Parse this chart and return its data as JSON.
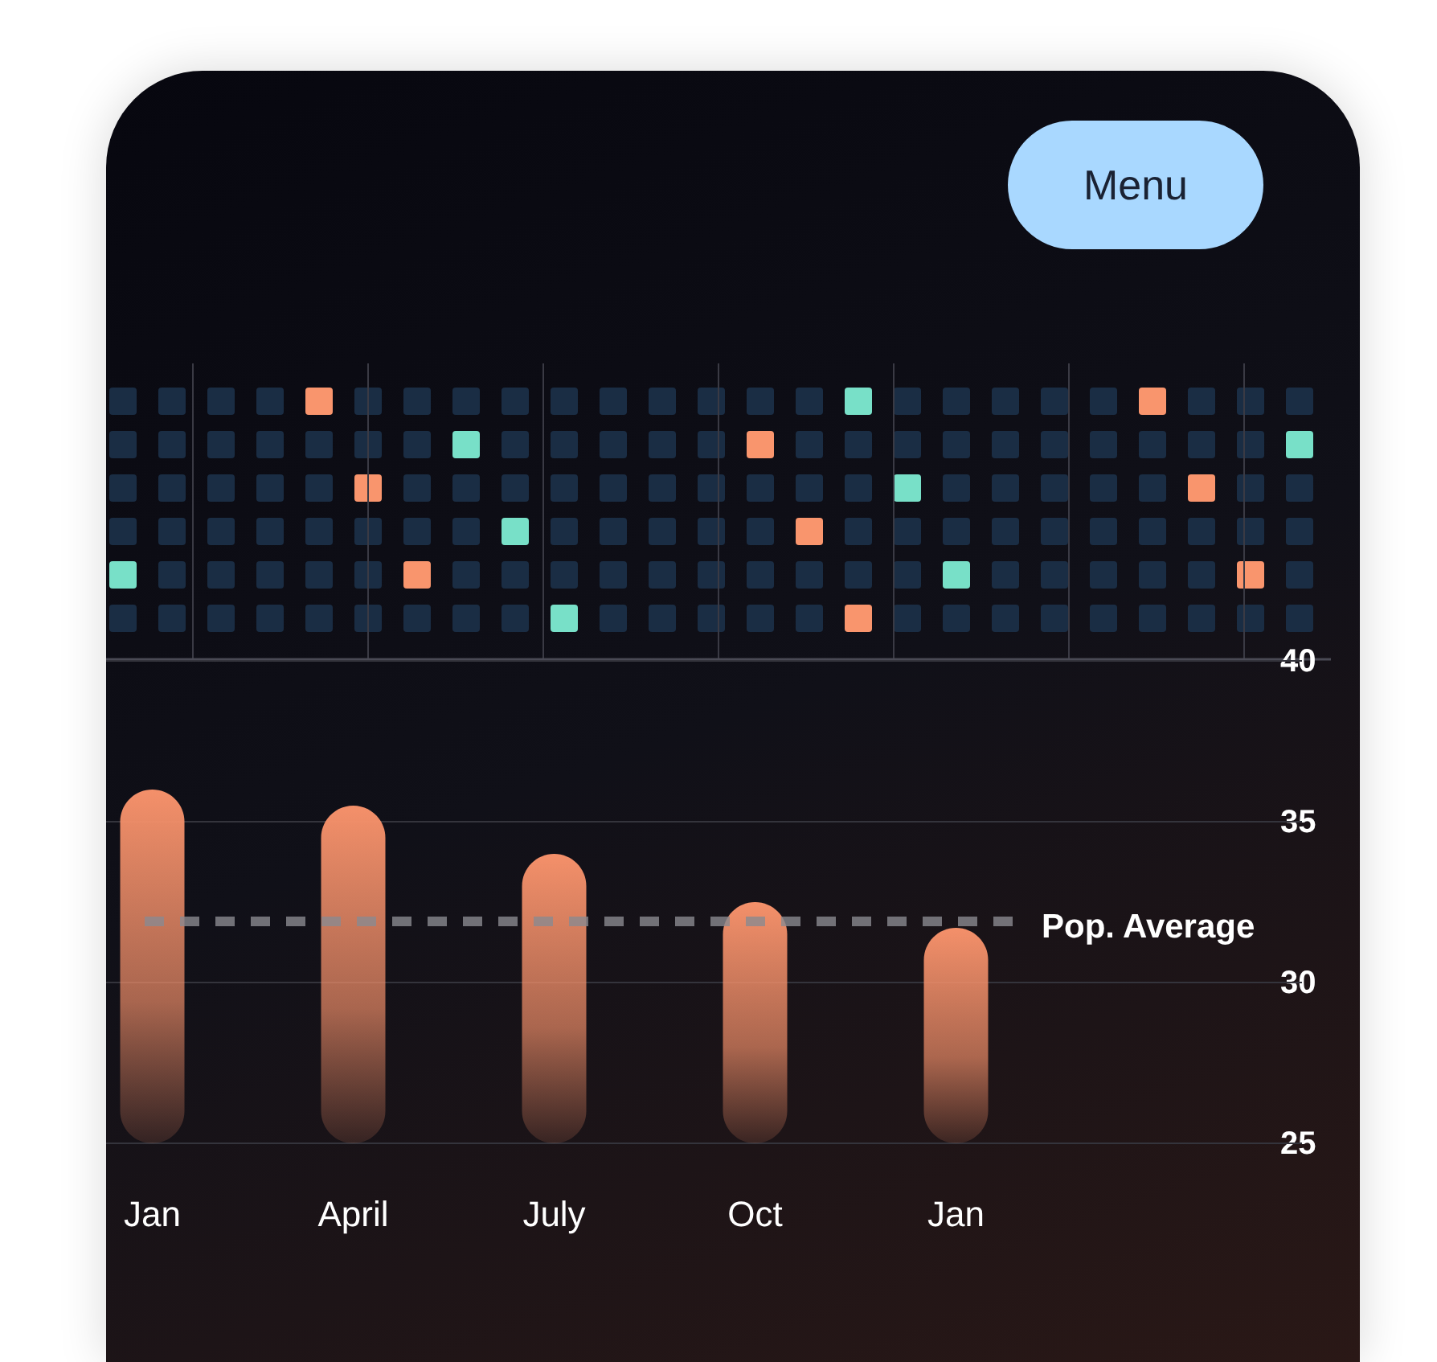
{
  "chart_data": {
    "type": "bar",
    "categories": [
      "Jan",
      "April",
      "July",
      "Oct",
      "Jan"
    ],
    "values": [
      36,
      35.5,
      34,
      32.5,
      31.7
    ],
    "color": "#f4906a",
    "ylim": [
      25,
      40
    ],
    "yticks": [
      25,
      30,
      35,
      40
    ],
    "grid": "y",
    "ref_lines": [
      {
        "axis": "y",
        "value": 31.9,
        "label": "Pop. Average",
        "color": "#8a8a90",
        "line_style": "dashed"
      }
    ],
    "annotations": [
      "Menu"
    ]
  }
}
